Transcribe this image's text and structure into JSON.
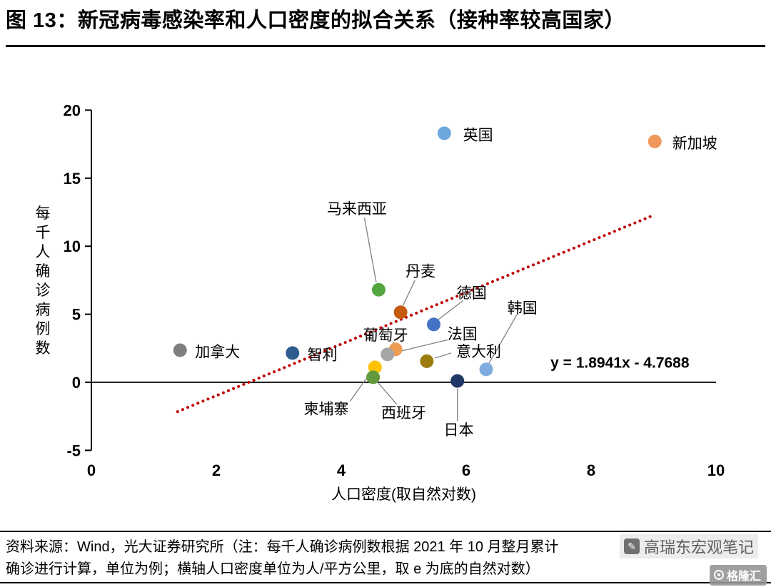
{
  "title": "图 13：新冠病毒感染率和人口密度的拟合关系（接种率较高国家）",
  "chart_data": {
    "type": "scatter",
    "xlabel": "人口密度(取自然对数)",
    "ylabel": "每千人确诊病例数",
    "xlim": [
      0,
      10
    ],
    "ylim": [
      -5,
      20
    ],
    "x_ticks": [
      0,
      2,
      4,
      6,
      8,
      10
    ],
    "y_ticks": [
      -5,
      0,
      5,
      10,
      15,
      20
    ],
    "grid": false,
    "legend": "none",
    "trendline": {
      "slope": 1.8941,
      "intercept": -4.7688,
      "x_start": 1.38,
      "x_end": 8.95,
      "equation": "y = 1.8941x - 4.7688",
      "equation_pos": {
        "x": 7.35,
        "y": 1.5
      },
      "color": "#C00000",
      "style": "dotted"
    },
    "leader_color": "#808080",
    "points": [
      {
        "name": "英国",
        "x": 5.65,
        "y": 18.3,
        "color": "#6FA8DC",
        "label": {
          "x": 5.95,
          "y": 18.2,
          "anchor": "start"
        }
      },
      {
        "name": "新加坡",
        "x": 9.02,
        "y": 17.7,
        "color": "#F0985C",
        "label": {
          "x": 9.3,
          "y": 17.6,
          "anchor": "start"
        }
      },
      {
        "name": "马来西亚",
        "x": 4.6,
        "y": 6.8,
        "color": "#54A53F",
        "label": {
          "x": 4.25,
          "y": 12.8,
          "anchor": "middle"
        },
        "leader": [
          [
            4.37,
            12.1
          ],
          [
            4.56,
            7.35
          ]
        ]
      },
      {
        "name": "丹麦",
        "x": 4.95,
        "y": 5.15,
        "color": "#C55A11",
        "label": {
          "x": 5.27,
          "y": 8.2,
          "anchor": "middle"
        },
        "leader": [
          [
            5.18,
            7.5
          ],
          [
            4.99,
            5.65
          ]
        ]
      },
      {
        "name": "德国",
        "x": 5.48,
        "y": 4.25,
        "color": "#4472C4",
        "label": {
          "x": 6.09,
          "y": 6.6,
          "anchor": "middle"
        },
        "leader": [
          [
            5.95,
            6.0
          ],
          [
            5.55,
            4.6
          ]
        ]
      },
      {
        "name": "葡萄牙",
        "x": 4.87,
        "y": 2.42,
        "color": "#ED9C54",
        "label": {
          "x": 4.71,
          "y": 3.5,
          "anchor": "middle"
        },
        "leader": [
          [
            4.82,
            2.98
          ],
          [
            4.87,
            2.78
          ]
        ]
      },
      {
        "name": "法国",
        "x": 4.74,
        "y": 2.05,
        "color": "#A6A6A6",
        "label": {
          "x": 5.94,
          "y": 3.6,
          "anchor": "middle"
        },
        "leader": [
          [
            5.7,
            3.12
          ],
          [
            4.96,
            2.3
          ]
        ]
      },
      {
        "name": "意大利",
        "x": 5.37,
        "y": 1.55,
        "color": "#9B7C0F",
        "label": {
          "x": 6.2,
          "y": 2.3,
          "anchor": "middle"
        },
        "leader": [
          [
            5.76,
            2.15
          ],
          [
            5.5,
            1.78
          ]
        ]
      },
      {
        "name": "韩国",
        "x": 6.32,
        "y": 0.95,
        "color": "#7FACDE",
        "label": {
          "x": 6.9,
          "y": 5.5,
          "anchor": "middle"
        },
        "leader": [
          [
            6.81,
            4.95
          ],
          [
            6.36,
            1.35
          ]
        ]
      },
      {
        "name": "加拿大",
        "x": 1.42,
        "y": 2.36,
        "color": "#7F7F7F",
        "label": {
          "x": 1.66,
          "y": 2.28,
          "anchor": "start"
        }
      },
      {
        "name": "智利",
        "x": 3.22,
        "y": 2.15,
        "color": "#2E5C8F",
        "label": {
          "x": 3.46,
          "y": 2.08,
          "anchor": "start"
        }
      },
      {
        "name": "柬埔寨",
        "x": 4.54,
        "y": 1.1,
        "color": "#FFC000",
        "label": {
          "x": 3.76,
          "y": -1.9,
          "anchor": "middle"
        },
        "leader": [
          [
            4.14,
            -1.4
          ],
          [
            4.47,
            0.72
          ]
        ]
      },
      {
        "name": "西班牙",
        "x": 4.51,
        "y": 0.37,
        "color": "#63993D",
        "label": {
          "x": 5.0,
          "y": -2.2,
          "anchor": "middle"
        },
        "leader": [
          [
            4.89,
            -1.62
          ],
          [
            4.58,
            0.02
          ]
        ]
      },
      {
        "name": "日本",
        "x": 5.86,
        "y": 0.1,
        "color": "#1F3864",
        "label": {
          "x": 5.88,
          "y": -3.45,
          "anchor": "middle"
        },
        "leader": [
          [
            5.86,
            -2.85
          ],
          [
            5.86,
            -0.45
          ]
        ]
      }
    ]
  },
  "footer": {
    "line1": "资料来源：Wind，光大证券研究所（注：每千人确诊病例数根据 2021 年 10 月整月累计",
    "line2": "确诊进行计算，单位为例；横轴人口密度单位为人/平方公里，取 e 为底的自然对数）"
  },
  "watermark": {
    "note_text": "高瑞东宏观笔记",
    "logo_text": "格隆汇"
  }
}
